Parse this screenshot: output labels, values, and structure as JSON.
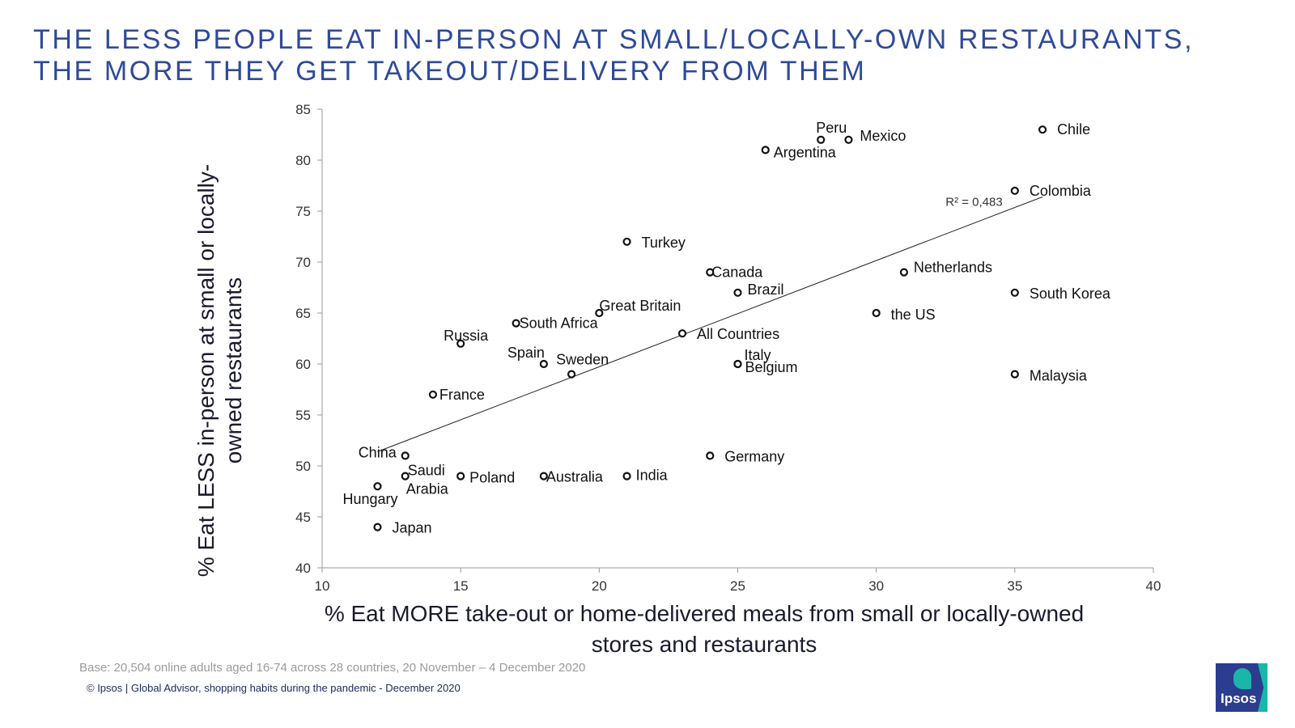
{
  "title": {
    "line1": "THE LESS PEOPLE EAT IN-PERSON AT SMALL/LOCALLY-OWN RESTAURANTS,",
    "line2": "THE MORE THEY GET TAKEOUT/DELIVERY FROM THEM"
  },
  "footer": {
    "base": "Base: 20,504 online adults aged 16-74 across 28 countries,  20 November – 4 December 2020",
    "credit": "© Ipsos |  Global Advisor, shopping habits during the pandemic - December 2020"
  },
  "logo": {
    "text": "Ipsos",
    "colors": {
      "background": "#2c3c8f",
      "accent": "#1ab7a8"
    }
  },
  "chart_data": {
    "type": "scatter",
    "xlabel": "% Eat MORE take-out or home-delivered meals from small or locally-owned stores and restaurants",
    "ylabel": "% Eat LESS in-person at small or locally-owned restaurants",
    "xlim": [
      10,
      40
    ],
    "ylim": [
      40,
      85
    ],
    "xticks": [
      10,
      15,
      20,
      25,
      30,
      35,
      40
    ],
    "yticks": [
      40,
      45,
      50,
      55,
      60,
      65,
      70,
      75,
      80,
      85
    ],
    "grid": false,
    "legend": "none",
    "marker": "hollow-circle",
    "colors": {
      "title": "#2f4a9b",
      "marker": "#111111",
      "axis": "#999999"
    },
    "points": [
      {
        "label": "Chile",
        "x": 36,
        "y": 83
      },
      {
        "label": "Peru",
        "x": 28,
        "y": 82
      },
      {
        "label": "Mexico",
        "x": 29,
        "y": 82
      },
      {
        "label": "Argentina",
        "x": 26,
        "y": 81
      },
      {
        "label": "Colombia",
        "x": 35,
        "y": 77
      },
      {
        "label": "Turkey",
        "x": 21,
        "y": 72
      },
      {
        "label": "Canada",
        "x": 24,
        "y": 69
      },
      {
        "label": "Netherlands",
        "x": 31,
        "y": 69
      },
      {
        "label": "Brazil",
        "x": 25,
        "y": 67
      },
      {
        "label": "South Korea",
        "x": 35,
        "y": 67
      },
      {
        "label": "Great Britain",
        "x": 20,
        "y": 65
      },
      {
        "label": "the US",
        "x": 30,
        "y": 65
      },
      {
        "label": "South Africa",
        "x": 17,
        "y": 64
      },
      {
        "label": "All Countries",
        "x": 23,
        "y": 63
      },
      {
        "label": "Russia",
        "x": 15,
        "y": 62
      },
      {
        "label": "Spain",
        "x": 18,
        "y": 60
      },
      {
        "label": "Italy",
        "x": 25,
        "y": 60
      },
      {
        "label": "Belgium",
        "x": 25,
        "y": 60
      },
      {
        "label": "Sweden",
        "x": 19,
        "y": 59
      },
      {
        "label": "Malaysia",
        "x": 35,
        "y": 59
      },
      {
        "label": "France",
        "x": 14,
        "y": 57
      },
      {
        "label": "China",
        "x": 13,
        "y": 51
      },
      {
        "label": "Germany",
        "x": 24,
        "y": 51
      },
      {
        "label": "Saudi Arabia",
        "x": 13,
        "y": 49
      },
      {
        "label": "Poland",
        "x": 15,
        "y": 49
      },
      {
        "label": "Australia",
        "x": 18,
        "y": 49
      },
      {
        "label": "India",
        "x": 21,
        "y": 49
      },
      {
        "label": "Hungary",
        "x": 12,
        "y": 48
      },
      {
        "label": "Japan",
        "x": 12,
        "y": 44
      }
    ],
    "trendline": {
      "type": "linear",
      "from": [
        12,
        51.4
      ],
      "to": [
        36,
        76.4
      ],
      "annotation": "R² = 0,483"
    }
  }
}
